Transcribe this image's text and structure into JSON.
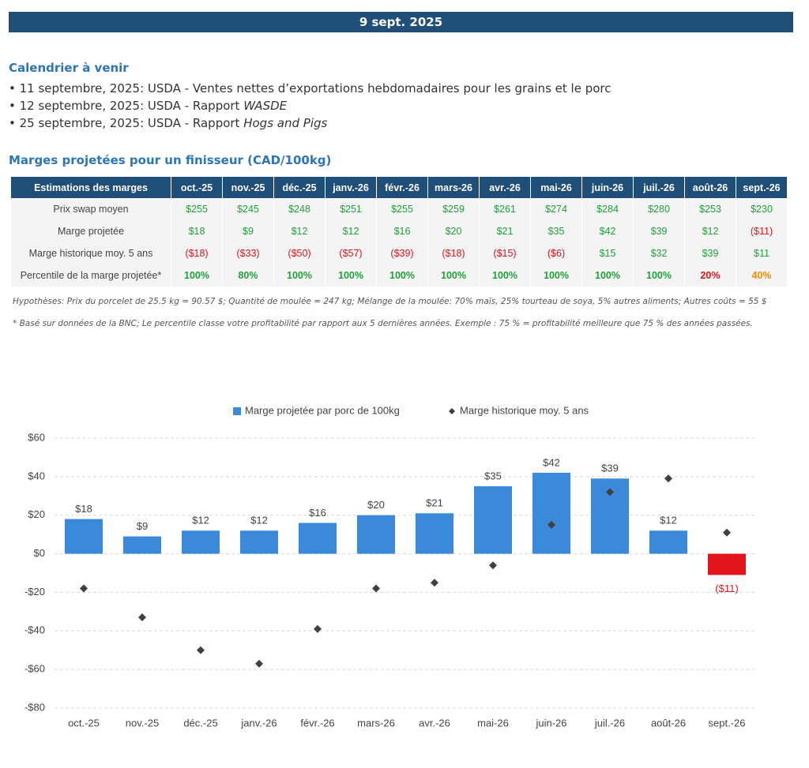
{
  "header": {
    "date": "9 sept. 2025"
  },
  "calendar": {
    "title": "Calendrier à venir",
    "items": [
      {
        "text": "11 septembre, 2025: USDA - Ventes nettes d’exportations hebdomadaires pour les grains et le porc"
      },
      {
        "text": "12 septembre, 2025: USDA - Rapport ",
        "em": "WASDE"
      },
      {
        "text": "25 septembre, 2025: USDA - Rapport ",
        "em": "Hogs and Pigs"
      }
    ]
  },
  "table": {
    "title": "Marges projetées pour un finisseur (CAD/100kg)",
    "header": [
      "Estimations des marges",
      "oct.-25",
      "nov.-25",
      "déc.-25",
      "janv.-26",
      "févr.-26",
      "mars-26",
      "avr.-26",
      "mai-26",
      "juin-26",
      "juil.-26",
      "août-26",
      "sept.-26"
    ],
    "rows": [
      {
        "label": "Prix swap moyen",
        "cells": [
          "$255",
          "$245",
          "$248",
          "$251",
          "$255",
          "$259",
          "$261",
          "$274",
          "$284",
          "$280",
          "$253",
          "$230"
        ],
        "colors": [
          "#1fa23a",
          "#1fa23a",
          "#1fa23a",
          "#1fa23a",
          "#1fa23a",
          "#1fa23a",
          "#1fa23a",
          "#1fa23a",
          "#1fa23a",
          "#1fa23a",
          "#1fa23a",
          "#1fa23a"
        ]
      },
      {
        "label": "Marge projetée",
        "cells": [
          "$18",
          "$9",
          "$12",
          "$12",
          "$16",
          "$20",
          "$21",
          "$35",
          "$42",
          "$39",
          "$12",
          "($11)"
        ],
        "colors": [
          "#1fa23a",
          "#1fa23a",
          "#1fa23a",
          "#1fa23a",
          "#1fa23a",
          "#1fa23a",
          "#1fa23a",
          "#1fa23a",
          "#1fa23a",
          "#1fa23a",
          "#1fa23a",
          "#e3141b"
        ]
      },
      {
        "label": "Marge historique moy. 5 ans",
        "cells": [
          "($18)",
          "($33)",
          "($50)",
          "($57)",
          "($39)",
          "($18)",
          "($15)",
          "($6)",
          "$15",
          "$32",
          "$39",
          "$11"
        ],
        "colors": [
          "#e3141b",
          "#e3141b",
          "#e3141b",
          "#e3141b",
          "#e3141b",
          "#e3141b",
          "#e3141b",
          "#e3141b",
          "#1fa23a",
          "#1fa23a",
          "#1fa23a",
          "#1fa23a"
        ]
      },
      {
        "label": "Percentile de la marge projetée*",
        "bold": true,
        "cells": [
          "100%",
          "80%",
          "100%",
          "100%",
          "100%",
          "100%",
          "100%",
          "100%",
          "100%",
          "100%",
          "20%",
          "40%"
        ],
        "colors": [
          "#1fa23a",
          "#1fa23a",
          "#1fa23a",
          "#1fa23a",
          "#1fa23a",
          "#1fa23a",
          "#1fa23a",
          "#1fa23a",
          "#1fa23a",
          "#1fa23a",
          "#e3141b",
          "#f28c00"
        ]
      }
    ]
  },
  "notes": [
    "Hypothèses: Prix du porcelet de 25.5 kg = 90.57 $; Quantité de moulée = 247 kg; Mélange de la moulée: 70% maïs, 25% tourteau de soya, 5% autres aliments; Autres coûts = 55 $",
    "* Basé sur données de la BNC; Le percentile classe votre profitabilité par rapport aux 5 dernières années. Exemple : 75 % = profitabilité meilleure que 75 % des années passées."
  ],
  "chart_data": {
    "type": "bar",
    "categories": [
      "oct.-25",
      "nov.-25",
      "déc.-25",
      "janv.-26",
      "févr.-26",
      "mars-26",
      "avr.-26",
      "mai-26",
      "juin-26",
      "juil.-26",
      "août-26",
      "sept.-26"
    ],
    "series": [
      {
        "name": "Marge projetée par porc de 100kg",
        "type": "bar",
        "color": "#3b8ad9",
        "negative_color": "#e3141b",
        "values": [
          18,
          9,
          12,
          12,
          16,
          20,
          21,
          35,
          42,
          39,
          12,
          -11
        ],
        "value_labels": [
          "$18",
          "$9",
          "$12",
          "$12",
          "$16",
          "$20",
          "$21",
          "$35",
          "$42",
          "$39",
          "$12",
          "($11)"
        ]
      },
      {
        "name": "Marge historique moy. 5 ans",
        "type": "scatter",
        "marker": "diamond",
        "color": "#404040",
        "values": [
          -18,
          -33,
          -50,
          -57,
          -39,
          -18,
          -15,
          -6,
          15,
          32,
          39,
          11
        ]
      }
    ],
    "ylim": [
      -80,
      60
    ],
    "yticks": [
      {
        "value": -80,
        "label": "-$80"
      },
      {
        "value": -60,
        "label": "-$60"
      },
      {
        "value": -40,
        "label": "-$40"
      },
      {
        "value": -20,
        "label": "-$20"
      },
      {
        "value": 0,
        "label": "$0"
      },
      {
        "value": 20,
        "label": "$20"
      },
      {
        "value": 40,
        "label": "$40"
      },
      {
        "value": 60,
        "label": "$60"
      }
    ],
    "grid": true,
    "legend": "top"
  }
}
